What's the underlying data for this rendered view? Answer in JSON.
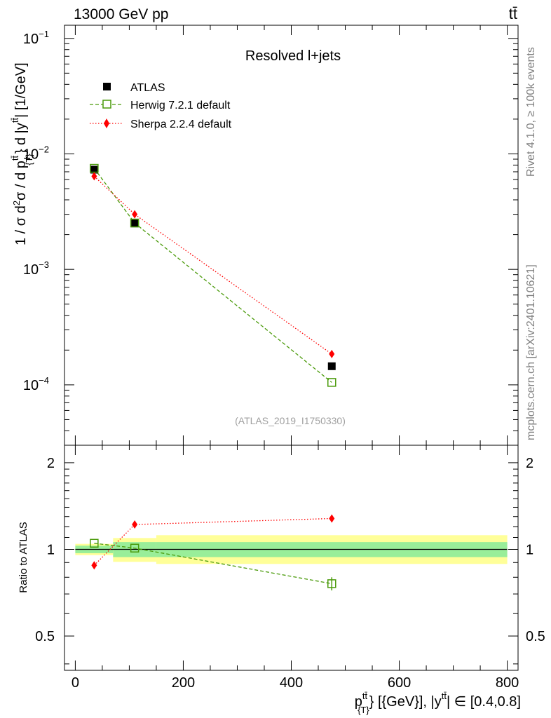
{
  "header": {
    "left": "13000 GeV pp",
    "right": "tt̄"
  },
  "side": {
    "rivet": "Rivet 4.1.0, ≥ 100k events",
    "mcplots": "mcplots.cern.ch [arXiv:2401.10621]"
  },
  "chart_data": {
    "type": "scatter",
    "title": "Resolved l+jets",
    "analysis_id": "(ATLAS_2019_I1750330)",
    "ylabel": "1 / σ d²σ / d p_{T}^{tt̄} d |y^{tt̄}| [1/GeV]",
    "ylabel_prefix": "1 / σ d",
    "ylabel_sigma": "σ / d p",
    "ylabel_pt_sup": "tt̄",
    "ylabel_pt_sub": "{T}",
    "ylabel_y_mid": "} d |y",
    "ylabel_y_sup": "tt̄",
    "ylabel_unit": "| [1/GeV]",
    "xlabel_p": "p",
    "xlabel_p_sup": "tt̄",
    "xlabel_p_sub": "{T}",
    "xlabel_rest": "} [{GeV}], |y",
    "xlabel_y_sup": "tt̄",
    "xlabel_tail": "| ∈ [0.4,0.8]",
    "xlim": [
      -20,
      820
    ],
    "ylim_log": [
      3e-05,
      0.13
    ],
    "x_ticks": [
      0,
      200,
      400,
      600,
      800
    ],
    "x_tick_labels": [
      "0",
      "200",
      "400",
      "600",
      "800"
    ],
    "y_major_ticks": [
      0.0001,
      0.001,
      0.01,
      0.1
    ],
    "y_tick_labels": [
      {
        "base": "10",
        "exp": "−4"
      },
      {
        "base": "10",
        "exp": "−3"
      },
      {
        "base": "10",
        "exp": "−2"
      },
      {
        "base": "10",
        "exp": "−1"
      }
    ],
    "bins": [
      [
        0,
        70
      ],
      [
        70,
        150
      ],
      [
        150,
        800
      ]
    ],
    "series": [
      {
        "name": "ATLAS",
        "style": "marker",
        "color": "#000000",
        "x": [
          35,
          110,
          475
        ],
        "y": [
          0.0073,
          0.0025,
          0.000145
        ]
      },
      {
        "name": "Herwig 7.2.1 default",
        "style": "dashed",
        "color": "#4a9a0a",
        "x": [
          35,
          110,
          475
        ],
        "y": [
          0.0075,
          0.00252,
          0.000105
        ]
      },
      {
        "name": "Sherpa 2.2.4 default",
        "style": "dotted",
        "color": "#ff0000",
        "x": [
          35,
          110,
          475
        ],
        "y": [
          0.0064,
          0.003,
          0.000185
        ]
      }
    ],
    "ratio": {
      "ylabel": "Ratio to ATLAS",
      "ylim": [
        0.38,
        2.3
      ],
      "ticks": [
        0.5,
        1,
        2
      ],
      "tick_labels": [
        "0.5",
        "1",
        "2"
      ],
      "band_stat": [
        [
          0.97,
          1.03
        ],
        [
          0.94,
          1.06
        ],
        [
          0.94,
          1.06
        ]
      ],
      "band_total": [
        [
          0.955,
          1.045
        ],
        [
          0.905,
          1.095
        ],
        [
          0.89,
          1.12
        ]
      ],
      "herwig": {
        "x": [
          35,
          110,
          475
        ],
        "y": [
          1.05,
          1.01,
          0.76
        ],
        "err_last": [
          0.72,
          0.8
        ]
      },
      "sherpa": {
        "x": [
          35,
          110,
          475
        ],
        "y": [
          0.88,
          1.22,
          1.28
        ]
      }
    },
    "colors": {
      "band_total": "#ffff99",
      "band_stat": "#99ee99",
      "herwig": "#4a9a0a",
      "sherpa": "#ff0000"
    }
  }
}
